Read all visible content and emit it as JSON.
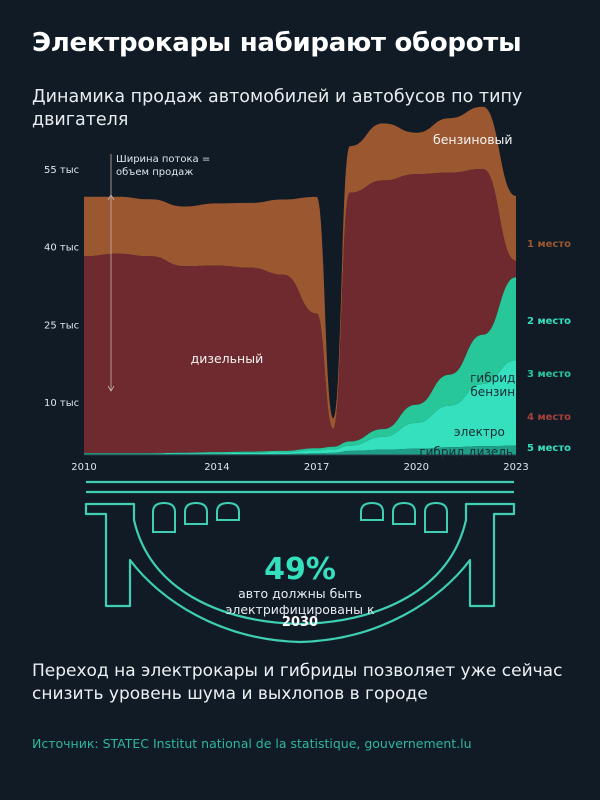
{
  "title": "Электрокары набирают обороты",
  "subtitle": "Динамика продаж автомобилей и автобусов по типу двигателя",
  "bottom_text": "Переход на электрокары и гибриды позволяет уже сейчас снизить уровень шума и выхлопов в городе",
  "source": "Источник: STATEC Institut national de la statistique, gouvernement.lu",
  "stat": {
    "value": "49%",
    "caption": "авто должны быть электрифицированы к",
    "year": "2030"
  },
  "colors": {
    "background": "#101b26",
    "diesel": "#6f2a30",
    "petrol": "#9b5730",
    "electric": "#35e0be",
    "hybrid_petrol": "#27c79a",
    "hybrid_diesel": "#1e9e87",
    "bridge": "#3fcfb3"
  },
  "chart_data": {
    "type": "area",
    "subtype": "stream",
    "note": "Ширина потока = объем продаж",
    "y_tick_labels": [
      "55 тыс",
      "40 тыс",
      "25 тыс",
      "10 тыс"
    ],
    "y_tick_values": [
      55000,
      40000,
      25000,
      10000
    ],
    "ylim": [
      0,
      55000
    ],
    "x_tick_labels": [
      "2010",
      "2014",
      "2017",
      "2020",
      "2023"
    ],
    "x": [
      2010,
      2011,
      2012,
      2013,
      2014,
      2015,
      2016,
      2017,
      2017.5,
      2018,
      2019,
      2020,
      2021,
      2022,
      2023
    ],
    "series": [
      {
        "name": "дизельный",
        "rank": "4 место",
        "color": "#6f2a30",
        "values": [
          38000,
          38500,
          38000,
          36000,
          36000,
          35500,
          34000,
          26000,
          3500,
          48000,
          48000,
          44500,
          39000,
          32000,
          3200
        ]
      },
      {
        "name": "бензиновый",
        "rank": "1 место",
        "color": "#9b5730",
        "values": [
          11500,
          11000,
          11000,
          11500,
          12000,
          12500,
          14500,
          22500,
          2000,
          9000,
          11000,
          8000,
          10500,
          12000,
          12500
        ]
      },
      {
        "name": "гибрид бензин",
        "rank": "3 место",
        "color": "#27c79a",
        "values": [
          100,
          100,
          100,
          150,
          200,
          250,
          300,
          400,
          500,
          800,
          1500,
          3500,
          6000,
          9500,
          16000
        ]
      },
      {
        "name": "электро",
        "rank": "2 место",
        "color": "#35e0be",
        "values": [
          50,
          50,
          50,
          100,
          150,
          200,
          300,
          600,
          700,
          1000,
          2500,
          5000,
          8000,
          12000,
          16500
        ]
      },
      {
        "name": "гибрид дизель",
        "rank": "5 место",
        "color": "#1e9e87",
        "values": [
          200,
          200,
          200,
          200,
          200,
          200,
          200,
          300,
          400,
          800,
          1000,
          1200,
          1500,
          1700,
          1800
        ]
      }
    ],
    "series_labels": [
      {
        "lines": [
          "дизельный"
        ]
      },
      {
        "lines": [
          "бензиновый"
        ]
      },
      {
        "lines": [
          "гибрид",
          "бензин"
        ]
      },
      {
        "lines": [
          "электро"
        ]
      },
      {
        "lines": [
          "гибрид дизель"
        ]
      }
    ],
    "rank_labels_order": [
      {
        "series": "бензиновый",
        "label": "1 место",
        "color": "#9b5730"
      },
      {
        "series": "электро",
        "label": "2 место",
        "color": "#35e0be"
      },
      {
        "series": "гибрид бензин",
        "label": "3 место",
        "color": "#27c79a"
      },
      {
        "series": "дизельный",
        "label": "4 место",
        "color": "#a8403a"
      },
      {
        "series": "гибрид дизель",
        "label": "5 место",
        "color": "#35e0be"
      }
    ]
  }
}
